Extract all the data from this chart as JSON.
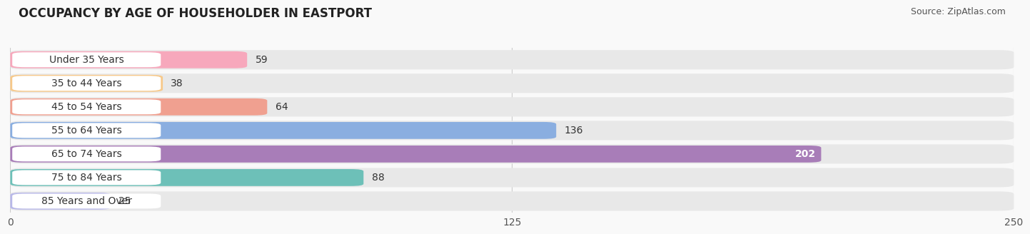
{
  "title": "OCCUPANCY BY AGE OF HOUSEHOLDER IN EASTPORT",
  "source": "Source: ZipAtlas.com",
  "categories": [
    "Under 35 Years",
    "35 to 44 Years",
    "45 to 54 Years",
    "55 to 64 Years",
    "65 to 74 Years",
    "75 to 84 Years",
    "85 Years and Over"
  ],
  "values": [
    59,
    38,
    64,
    136,
    202,
    88,
    25
  ],
  "bar_colors": [
    "#f7a8bc",
    "#f7c98a",
    "#f0a090",
    "#8aaee0",
    "#a87db8",
    "#6dc0b8",
    "#b8b8e8"
  ],
  "bar_bg_color": "#e8e8e8",
  "xlim": [
    0,
    250
  ],
  "xticks": [
    0,
    125,
    250
  ],
  "background_color": "#f9f9f9",
  "title_fontsize": 12,
  "source_fontsize": 9,
  "label_fontsize": 10,
  "value_fontsize": 10,
  "value_color_dark": "#333333",
  "value_color_light": "#ffffff",
  "label_bg_color": "#ffffff"
}
